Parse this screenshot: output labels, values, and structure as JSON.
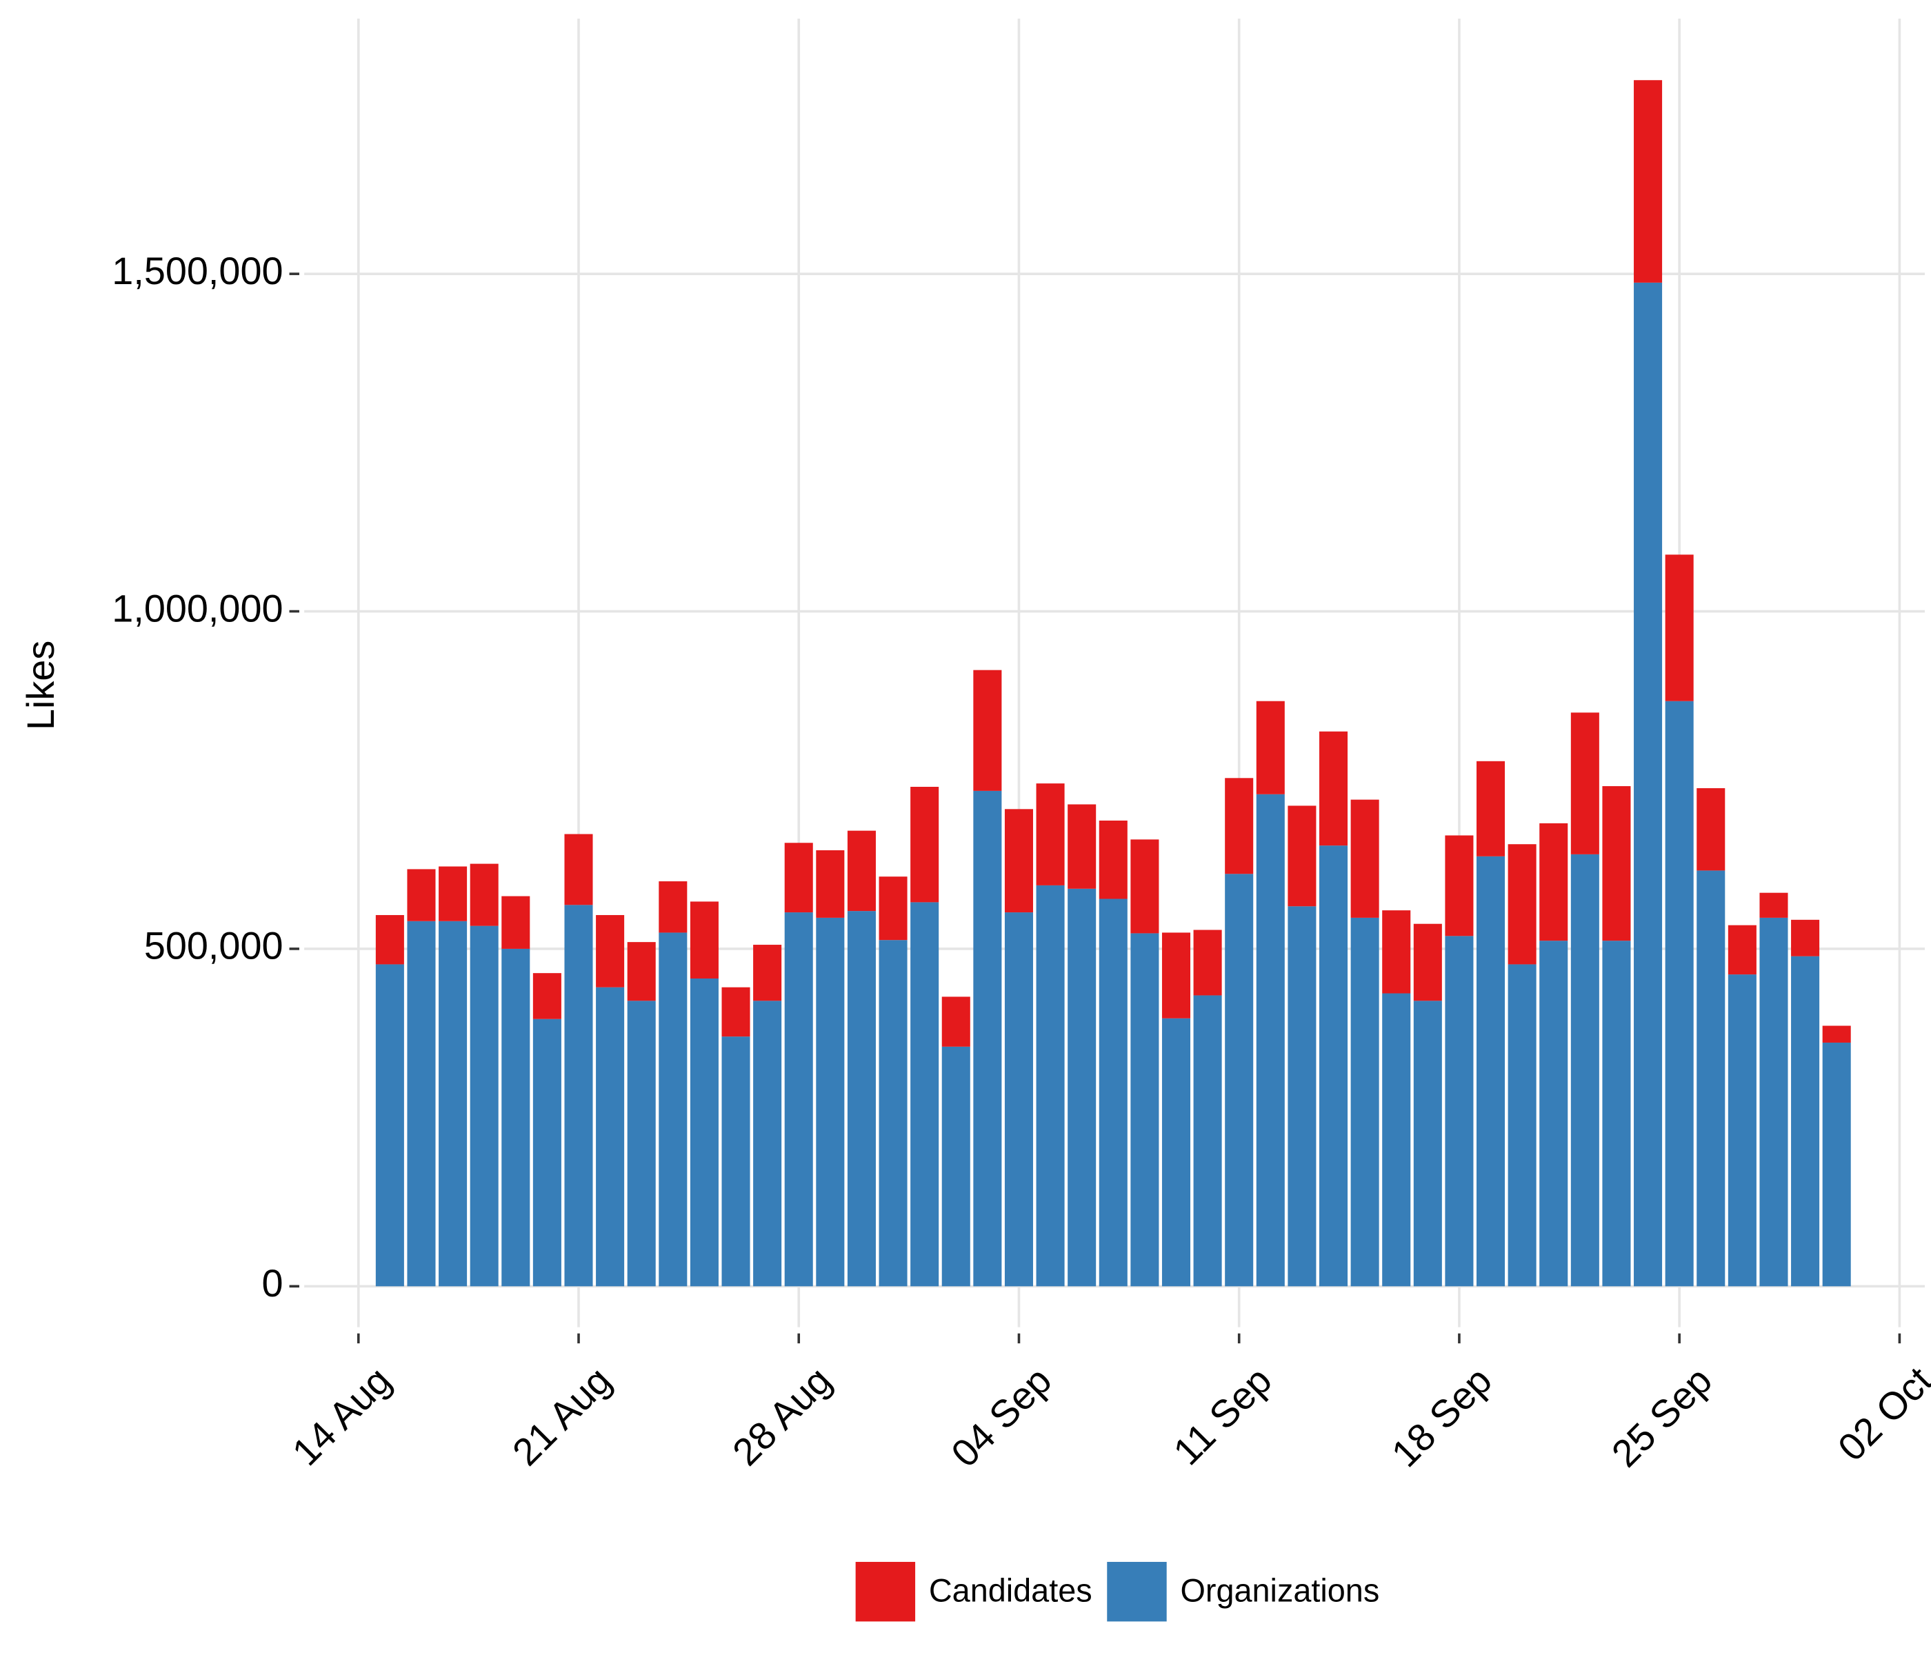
{
  "chart_data": {
    "type": "stacked_bar",
    "y_label": "Likes",
    "x": [
      "08-15",
      "08-16",
      "08-17",
      "08-18",
      "08-19",
      "08-20",
      "08-21",
      "08-22",
      "08-23",
      "08-24",
      "08-25",
      "08-26",
      "08-27",
      "08-28",
      "08-29",
      "08-30",
      "08-31",
      "09-01",
      "09-02",
      "09-03",
      "09-04",
      "09-05",
      "09-06",
      "09-07",
      "09-08",
      "09-09",
      "09-10",
      "09-11",
      "09-12",
      "09-13",
      "09-14",
      "09-15",
      "09-16",
      "09-17",
      "09-18",
      "09-19",
      "09-20",
      "09-21",
      "09-22",
      "09-23",
      "09-24",
      "09-25",
      "09-26",
      "09-27",
      "09-28",
      "09-29",
      "09-30"
    ],
    "series": [
      {
        "name": "Candidates",
        "color": "#e41a1c",
        "values": [
          73000,
          77000,
          81000,
          92000,
          78000,
          68000,
          105000,
          107000,
          87000,
          76000,
          114000,
          73000,
          83000,
          103000,
          100000,
          119000,
          94000,
          171000,
          74000,
          179000,
          153000,
          151000,
          125000,
          116000,
          139000,
          127000,
          97000,
          142000,
          138000,
          149000,
          169000,
          175000,
          123000,
          114000,
          149000,
          141000,
          178000,
          174000,
          210000,
          229000,
          300000,
          217000,
          122000,
          73000,
          37000,
          54000,
          25000
        ]
      },
      {
        "name": "Organizations",
        "color": "#377eb8",
        "values": [
          477000,
          541000,
          541000,
          534000,
          500000,
          396000,
          565000,
          443000,
          423000,
          524000,
          456000,
          370000,
          423000,
          554000,
          546000,
          556000,
          513000,
          569000,
          355000,
          734000,
          554000,
          594000,
          589000,
          574000,
          523000,
          397000,
          431000,
          611000,
          729000,
          563000,
          653000,
          546000,
          434000,
          423000,
          519000,
          637000,
          477000,
          512000,
          640000,
          512000,
          1487000,
          867000,
          616000,
          462000,
          546000,
          489000,
          361000
        ]
      }
    ],
    "xlim": [
      "08-12",
      "10-03"
    ],
    "xticks": [
      {
        "value": "08-14",
        "label": "14 Aug"
      },
      {
        "value": "08-21",
        "label": "21 Aug"
      },
      {
        "value": "08-28",
        "label": "28 Aug"
      },
      {
        "value": "09-04",
        "label": "04 Sep"
      },
      {
        "value": "09-11",
        "label": "11 Sep"
      },
      {
        "value": "09-18",
        "label": "18 Sep"
      },
      {
        "value": "09-25",
        "label": "25 Sep"
      },
      {
        "value": "10-02",
        "label": "02 Oct"
      }
    ],
    "ylim": [
      -62500,
      1880000
    ],
    "yticks": [
      0,
      {
        "value": 500000,
        "label": "500,000"
      },
      {
        "value": 1000000,
        "label": "1,000,000"
      },
      {
        "value": 1500000,
        "label": "1,500,000"
      }
    ],
    "grid": true,
    "legend": "bottom"
  }
}
